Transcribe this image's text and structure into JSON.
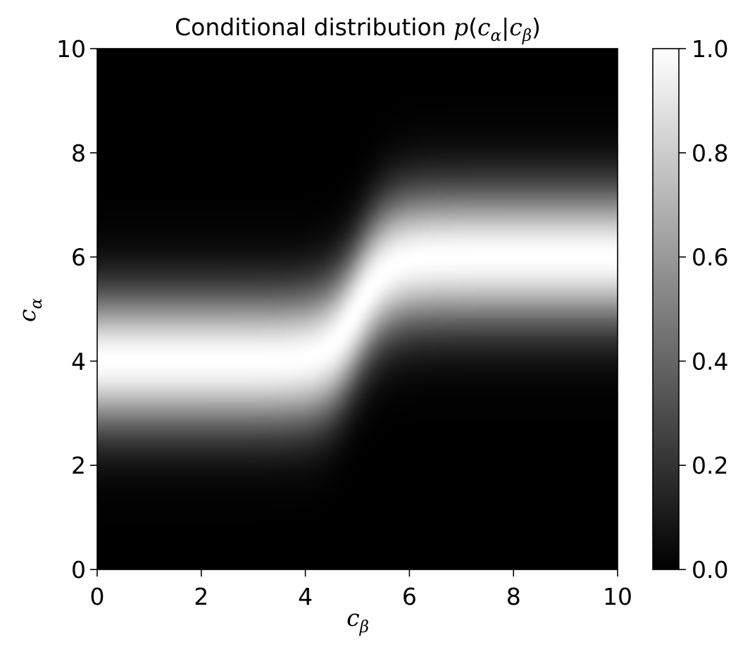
{
  "chart_data": {
    "type": "heatmap",
    "title": {
      "prefix": "Conditional distribution ",
      "func": "p",
      "open": "(",
      "var1": "c",
      "sub1": "α",
      "bar": "|",
      "var2": "c",
      "sub2": "β",
      "close": ")"
    },
    "xlabel": {
      "var": "c",
      "sub": "β"
    },
    "ylabel": {
      "var": "c",
      "sub": "α"
    },
    "xlim": [
      0,
      10
    ],
    "ylim": [
      0,
      10
    ],
    "xticks": [
      "0",
      "2",
      "4",
      "6",
      "8",
      "10"
    ],
    "yticks": [
      "0",
      "2",
      "4",
      "6",
      "8",
      "10"
    ],
    "colormap": "gray",
    "colorbar": {
      "range": [
        0.0,
        1.0
      ],
      "ticks": [
        "0.0",
        "0.2",
        "0.4",
        "0.6",
        "0.8",
        "1.0"
      ]
    },
    "model": {
      "description_values": "Peak of p(c_alpha | c_beta) shifts from c_alpha=4 (c_beta < 5) to c_alpha=6 (c_beta > 5)",
      "low_mean": 4,
      "high_mean": 6,
      "transition_cb": 5,
      "transition_width": 0.3,
      "sigma": 0.9,
      "peak": 1.0
    },
    "grid": false
  }
}
